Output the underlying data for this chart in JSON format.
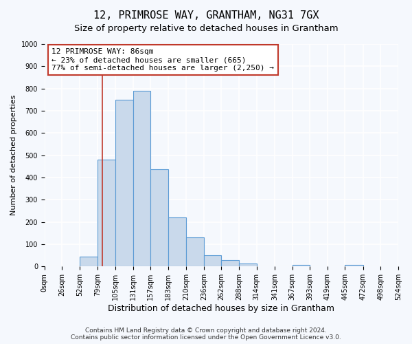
{
  "title": "12, PRIMROSE WAY, GRANTHAM, NG31 7GX",
  "subtitle": "Size of property relative to detached houses in Grantham",
  "xlabel": "Distribution of detached houses by size in Grantham",
  "ylabel": "Number of detached properties",
  "bin_edges": [
    0,
    26,
    52,
    79,
    105,
    131,
    157,
    183,
    210,
    236,
    262,
    288,
    314,
    341,
    367,
    393,
    419,
    445,
    472,
    498,
    524
  ],
  "bar_heights": [
    0,
    0,
    45,
    480,
    750,
    790,
    437,
    220,
    130,
    52,
    28,
    13,
    0,
    0,
    6,
    0,
    0,
    8,
    0,
    0
  ],
  "bar_color": "#c9d9eb",
  "bar_edge_color": "#5b9bd5",
  "property_size": 86,
  "vline_color": "#c0392b",
  "annotation_line1": "12 PRIMROSE WAY: 86sqm",
  "annotation_line2": "← 23% of detached houses are smaller (665)",
  "annotation_line3": "77% of semi-detached houses are larger (2,250) →",
  "annotation_box_color": "#ffffff",
  "annotation_border_color": "#c0392b",
  "ylim": [
    0,
    1000
  ],
  "yticks": [
    0,
    100,
    200,
    300,
    400,
    500,
    600,
    700,
    800,
    900,
    1000
  ],
  "tick_labels": [
    "0sqm",
    "26sqm",
    "52sqm",
    "79sqm",
    "105sqm",
    "131sqm",
    "157sqm",
    "183sqm",
    "210sqm",
    "236sqm",
    "262sqm",
    "288sqm",
    "314sqm",
    "341sqm",
    "367sqm",
    "393sqm",
    "419sqm",
    "445sqm",
    "472sqm",
    "498sqm",
    "524sqm"
  ],
  "footer_line1": "Contains HM Land Registry data © Crown copyright and database right 2024.",
  "footer_line2": "Contains public sector information licensed under the Open Government Licence v3.0.",
  "bg_color": "#f5f8fd",
  "plot_bg_color": "#f5f8fd",
  "grid_color": "#ffffff",
  "title_fontsize": 11,
  "subtitle_fontsize": 9.5,
  "xlabel_fontsize": 9,
  "ylabel_fontsize": 8,
  "tick_fontsize": 7,
  "annotation_fontsize": 8,
  "footer_fontsize": 6.5
}
